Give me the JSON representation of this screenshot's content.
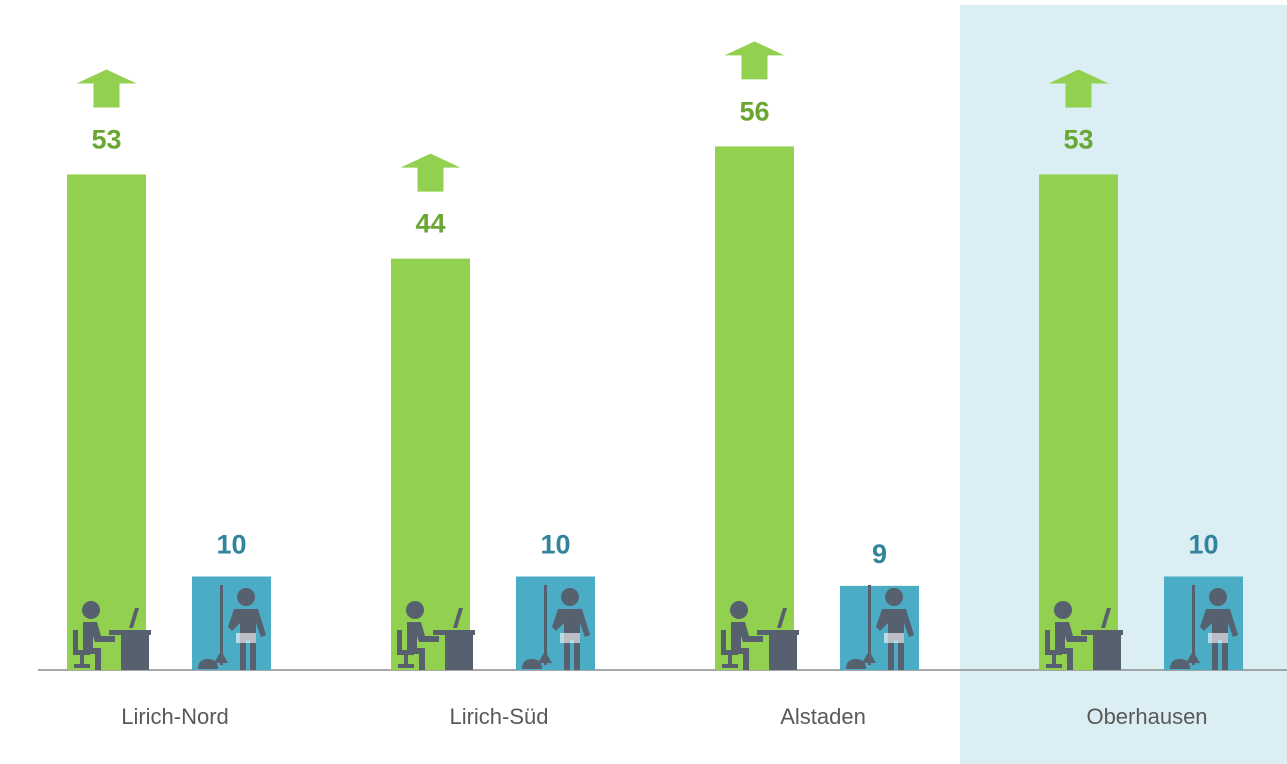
{
  "chart_data": {
    "type": "bar",
    "categories": [
      "Lirich-Nord",
      "Lirich-Süd",
      "Alstaden",
      "Oberhausen"
    ],
    "series": [
      {
        "color": "#92d050",
        "label_color": "#6aa632",
        "values": [
          53,
          44,
          56,
          53
        ]
      },
      {
        "color": "#4bacc6",
        "label_color": "#31849b",
        "values": [
          10,
          10,
          9,
          10
        ]
      }
    ],
    "highlight": "Oberhausen"
  }
}
